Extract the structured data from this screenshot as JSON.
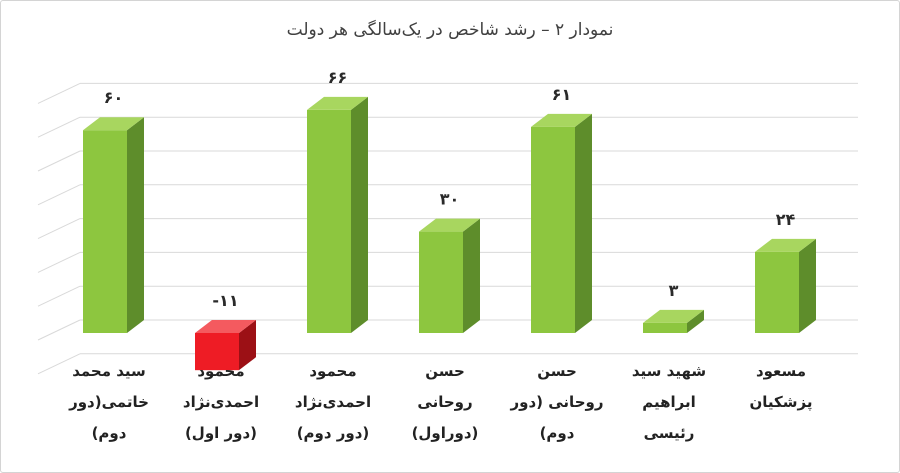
{
  "chart_data": {
    "type": "bar",
    "title": "نمودار ۲ – رشد شاخص در یک‌سالگی هر دولت",
    "ylim": [
      -12,
      72
    ],
    "grid": true,
    "categories": [
      [
        "سید محمد",
        "خاتمی(دور",
        "دوم)"
      ],
      [
        "محمود",
        "احمدی‌نژاد",
        "(دور اول)"
      ],
      [
        "محمود",
        "احمدی‌نژاد",
        "(دور دوم)"
      ],
      [
        "حسن",
        "روحانی",
        "(دوراول)"
      ],
      [
        "حسن",
        "روحانی (دور",
        "دوم)"
      ],
      [
        "شهید سید",
        "ابراهیم",
        "رئیسی"
      ],
      [
        "مسعود",
        "پزشکیان"
      ]
    ],
    "values": [
      60,
      -11,
      66,
      30,
      61,
      3,
      24
    ],
    "value_labels": [
      "۶۰",
      "-۱۱",
      "۶۶",
      "۳۰",
      "۶۱",
      "۳",
      "۲۴"
    ],
    "colors": {
      "positive_front": "#8dc63f",
      "positive_side": "#5e8d2b",
      "positive_top": "#a8d65f",
      "negative_front": "#ee1c25",
      "negative_side": "#9c1015",
      "negative_top": "#f45a5f",
      "grid": "#d9d9d9"
    }
  }
}
